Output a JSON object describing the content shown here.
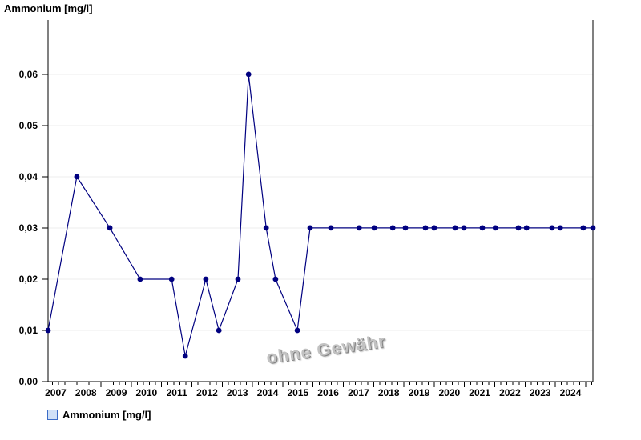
{
  "title": "Ammonium [mg/l]",
  "watermark": "ohne Gewähr",
  "legend": {
    "label": "Ammonium [mg/l]",
    "swatch_fill": "#cfe0f7",
    "swatch_border": "#3b6cc7"
  },
  "colors": {
    "series": "#000080",
    "grid": "#ededed",
    "axis": "#000000"
  },
  "chart_data": {
    "type": "line",
    "title": "Ammonium [mg/l]",
    "unit": "mg/l",
    "grid": "horizontal-only",
    "legend_position": "bottom-left",
    "x_axis": {
      "min": 2007.25,
      "max": 2025.24,
      "major_ticks": [
        2008,
        2009,
        2010,
        2011,
        2012,
        2013,
        2014,
        2015,
        2016,
        2017,
        2018,
        2019,
        2020,
        2021,
        2022,
        2023,
        2024,
        2025
      ],
      "minor_tick_step": 0.2,
      "year_labels": [
        "2007",
        "2008",
        "2009",
        "2010",
        "2011",
        "2012",
        "2013",
        "2014",
        "2015",
        "2016",
        "2017",
        "2018",
        "2019",
        "2020",
        "2021",
        "2022",
        "2023",
        "2024"
      ]
    },
    "y_axis": {
      "min": 0,
      "max": 0.0706,
      "tick_values": [
        0,
        0.01,
        0.02,
        0.03,
        0.04,
        0.05,
        0.06
      ],
      "tick_labels": [
        "0,00",
        "0,01",
        "0,02",
        "0,03",
        "0,04",
        "0,05",
        "0,06"
      ]
    },
    "series": [
      {
        "name": "Ammonium [mg/l]",
        "color": "#000080",
        "points": [
          [
            2007.25,
            0.01
          ],
          [
            2008.2,
            0.04
          ],
          [
            2009.29,
            0.03
          ],
          [
            2010.29,
            0.02
          ],
          [
            2011.33,
            0.02
          ],
          [
            2011.78,
            0.005
          ],
          [
            2012.46,
            0.02
          ],
          [
            2012.89,
            0.01
          ],
          [
            2013.52,
            0.02
          ],
          [
            2013.87,
            0.06
          ],
          [
            2014.45,
            0.03
          ],
          [
            2014.76,
            0.02
          ],
          [
            2015.48,
            0.01
          ],
          [
            2015.9,
            0.03
          ],
          [
            2016.59,
            0.03
          ],
          [
            2017.52,
            0.03
          ],
          [
            2018.02,
            0.03
          ],
          [
            2018.63,
            0.03
          ],
          [
            2019.05,
            0.03
          ],
          [
            2019.71,
            0.03
          ],
          [
            2020.0,
            0.03
          ],
          [
            2020.69,
            0.03
          ],
          [
            2020.98,
            0.03
          ],
          [
            2021.59,
            0.03
          ],
          [
            2022.02,
            0.03
          ],
          [
            2022.78,
            0.03
          ],
          [
            2023.05,
            0.03
          ],
          [
            2023.89,
            0.03
          ],
          [
            2024.16,
            0.03
          ],
          [
            2024.92,
            0.03
          ],
          [
            2025.24,
            0.03
          ]
        ]
      }
    ]
  }
}
